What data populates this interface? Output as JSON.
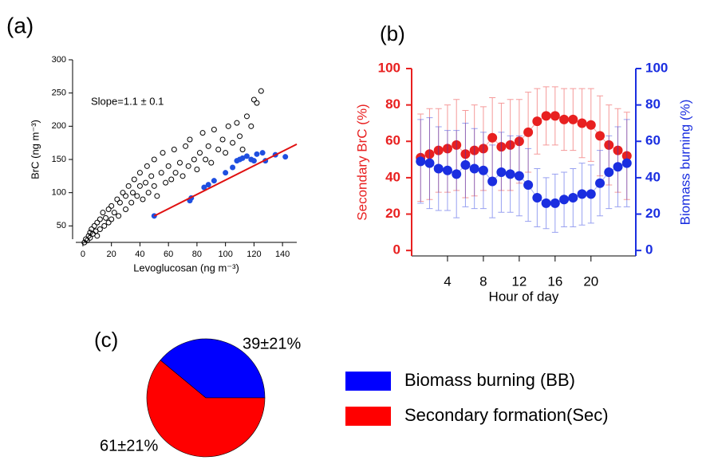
{
  "chart_data": [
    {
      "type": "scatter",
      "panel_label": "(a)",
      "xlabel": "Levoglucosan (ng m⁻³)",
      "ylabel": "BrC (ng m⁻³)",
      "annotation": "Slope=1.1 ± 0.1",
      "xlim": [
        -5,
        150
      ],
      "ylim": [
        30,
        300
      ],
      "xticks": [
        0,
        20,
        40,
        60,
        80,
        100,
        120,
        140
      ],
      "yticks": [
        50,
        100,
        150,
        200,
        250,
        300
      ],
      "series": [
        {
          "color": "#000000",
          "marker": "open",
          "x": [
            1,
            2,
            3,
            4,
            5,
            5,
            6,
            7,
            8,
            9,
            10,
            10,
            12,
            12,
            14,
            15,
            16,
            18,
            18,
            20,
            20,
            22,
            24,
            25,
            26,
            28,
            30,
            30,
            32,
            34,
            35,
            36,
            38,
            40,
            40,
            42,
            44,
            45,
            46,
            48,
            50,
            50,
            52,
            55,
            56,
            58,
            60,
            62,
            64,
            65,
            68,
            70,
            72,
            74,
            75,
            78,
            80,
            82,
            84,
            86,
            88,
            90,
            92,
            95,
            98,
            100,
            102,
            105,
            108,
            110,
            112,
            115,
            118,
            120,
            122,
            125
          ],
          "values": [
            25,
            30,
            28,
            35,
            40,
            32,
            45,
            38,
            50,
            42,
            55,
            35,
            60,
            45,
            70,
            50,
            62,
            75,
            55,
            80,
            60,
            70,
            90,
            65,
            85,
            100,
            75,
            95,
            110,
            85,
            100,
            120,
            95,
            110,
            130,
            90,
            115,
            140,
            100,
            125,
            110,
            150,
            95,
            130,
            160,
            115,
            140,
            120,
            165,
            130,
            145,
            125,
            170,
            140,
            180,
            150,
            135,
            160,
            190,
            150,
            170,
            145,
            195,
            165,
            180,
            160,
            200,
            175,
            205,
            185,
            165,
            215,
            200,
            240,
            235,
            253
          ]
        },
        {
          "color": "#1f4fe0",
          "marker": "filled",
          "x": [
            50,
            75,
            76,
            85,
            88,
            92,
            100,
            105,
            108,
            110,
            112,
            115,
            118,
            120,
            122,
            126,
            128,
            135,
            142
          ],
          "values": [
            65,
            88,
            92,
            108,
            112,
            118,
            130,
            138,
            148,
            150,
            152,
            155,
            150,
            148,
            158,
            160,
            148,
            157,
            154
          ]
        },
        {
          "color": "#e01010",
          "marker": "line",
          "x": [
            50,
            150
          ],
          "values": [
            65,
            173
          ]
        }
      ]
    },
    {
      "type": "line",
      "panel_label": "(b)",
      "xlabel": "Hour of day",
      "ylabel": "Secondary BrC (%)",
      "y2label": "Biomass burning (%)",
      "xlim": [
        0,
        25
      ],
      "xticks": [
        4,
        8,
        12,
        16,
        20
      ],
      "ylim": [
        -3,
        100
      ],
      "yticks": [
        0,
        20,
        40,
        60,
        80,
        100
      ],
      "y2lim": [
        -3,
        100
      ],
      "y2ticks": [
        0,
        20,
        40,
        60,
        80,
        100
      ],
      "x": [
        1,
        2,
        3,
        4,
        5,
        6,
        7,
        8,
        9,
        10,
        11,
        12,
        13,
        14,
        15,
        16,
        17,
        18,
        19,
        20,
        21,
        22,
        23,
        24
      ],
      "series": [
        {
          "color": "#e82020",
          "axis": "y",
          "values": [
            51,
            53,
            55,
            56,
            58,
            53,
            55,
            56,
            62,
            57,
            58,
            60,
            65,
            71,
            74,
            74,
            72,
            72,
            70,
            69,
            63,
            58,
            55,
            52
          ],
          "errors": [
            24,
            25,
            23,
            24,
            25,
            24,
            25,
            23,
            22,
            24,
            25,
            23,
            22,
            18,
            16,
            16,
            17,
            17,
            19,
            20,
            22,
            22,
            23,
            24
          ]
        },
        {
          "color": "#1a2ee0",
          "axis": "y2",
          "values": [
            49,
            48,
            45,
            44,
            42,
            47,
            45,
            44,
            38,
            43,
            42,
            41,
            36,
            29,
            26,
            26,
            28,
            29,
            31,
            31,
            37,
            43,
            46,
            48
          ],
          "errors": [
            23,
            25,
            23,
            22,
            24,
            23,
            22,
            21,
            20,
            22,
            21,
            22,
            20,
            16,
            14,
            16,
            15,
            16,
            17,
            16,
            18,
            20,
            22,
            24
          ]
        }
      ]
    },
    {
      "type": "pie",
      "panel_label": "(c)",
      "categories": [
        "Biomass burning (BB)",
        "Secondary formation(Sec)"
      ],
      "values": [
        39,
        61
      ],
      "value_labels": [
        "39±21%",
        "61±21%"
      ],
      "colors": [
        "#0000ff",
        "#ff0000"
      ]
    }
  ]
}
